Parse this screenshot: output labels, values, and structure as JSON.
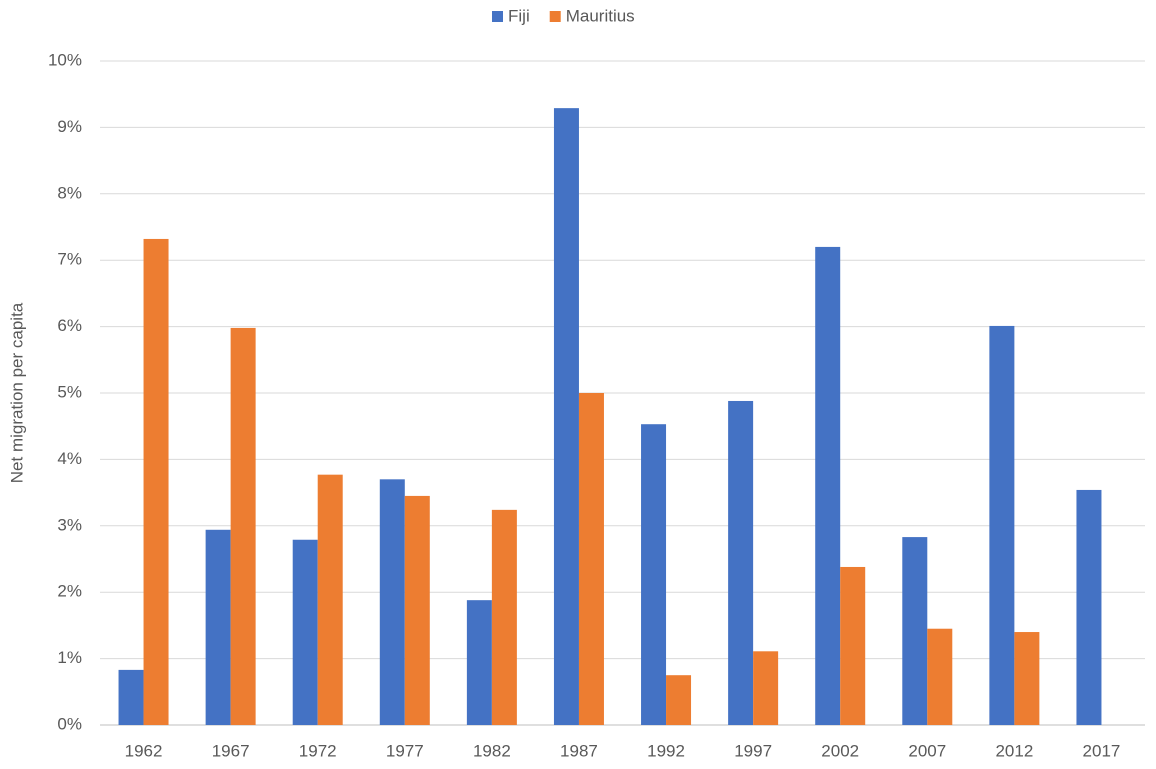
{
  "chart_data": {
    "type": "bar",
    "y_label": "Net migration per capita",
    "categories": [
      "1962",
      "1967",
      "1972",
      "1977",
      "1982",
      "1987",
      "1992",
      "1997",
      "2002",
      "2007",
      "2012",
      "2017"
    ],
    "series": [
      {
        "name": "Fiji",
        "color": "#4472c4",
        "values": [
          0.83,
          2.94,
          2.79,
          3.7,
          1.88,
          9.29,
          4.53,
          4.88,
          7.2,
          2.83,
          6.01,
          3.54
        ]
      },
      {
        "name": "Mauritius",
        "color": "#ed7d31",
        "values": [
          7.32,
          5.98,
          3.77,
          3.45,
          3.24,
          5.0,
          0.75,
          1.11,
          2.38,
          1.45,
          1.4,
          null
        ]
      }
    ],
    "ylim": [
      0,
      10
    ],
    "yticks": [
      {
        "value": 0,
        "label": "0%"
      },
      {
        "value": 1,
        "label": "1%"
      },
      {
        "value": 2,
        "label": "2%"
      },
      {
        "value": 3,
        "label": "3%"
      },
      {
        "value": 4,
        "label": "4%"
      },
      {
        "value": 5,
        "label": "5%"
      },
      {
        "value": 6,
        "label": "6%"
      },
      {
        "value": 7,
        "label": "7%"
      },
      {
        "value": 8,
        "label": "8%"
      },
      {
        "value": 9,
        "label": "9%"
      },
      {
        "value": 10,
        "label": "10%"
      }
    ],
    "grid": true,
    "legend": "top"
  }
}
